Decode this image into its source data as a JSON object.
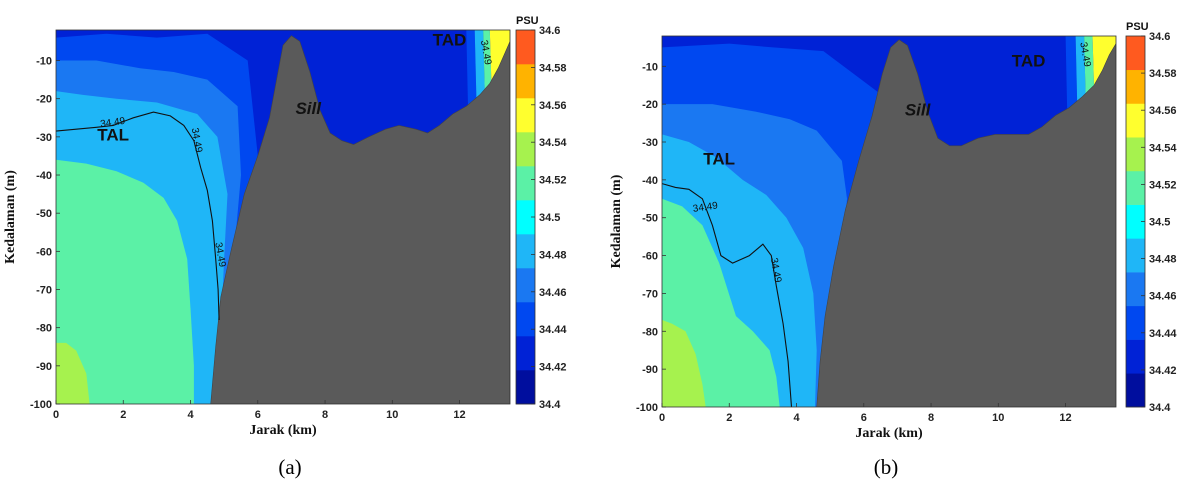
{
  "chart_data": [
    {
      "type": "heatmap",
      "panel_label": "(a)",
      "xlabel": "Jarak (km)",
      "ylabel": "Kedalaman (m)",
      "xlim": [
        0,
        13.5
      ],
      "ylim": [
        -100,
        -2
      ],
      "xticks": [
        0,
        2,
        4,
        6,
        8,
        10,
        12
      ],
      "yticks": [
        -10,
        -20,
        -30,
        -40,
        -50,
        -60,
        -70,
        -80,
        -90,
        -100
      ],
      "colorbar": {
        "unit": "PSU",
        "range": [
          34.4,
          34.6
        ],
        "ticks": [
          "34.6",
          "34.58",
          "34.56",
          "34.54",
          "34.52",
          "34.5",
          "34.48",
          "34.46",
          "34.44",
          "34.42",
          "34.4"
        ],
        "colors": [
          "#000e9e",
          "#0022d6",
          "#0048f0",
          "#1a78f2",
          "#1fb6f7",
          "#00ffff",
          "#5bf1a6",
          "#a6f24e",
          "#ffff2e",
          "#ffb300",
          "#ff5a1f"
        ]
      },
      "annotations": [
        {
          "text": "TAL",
          "x": 1.7,
          "y": -31
        },
        {
          "text": "Sill",
          "x": 7.5,
          "y": -24
        },
        {
          "text": "TAD",
          "x": 11.7,
          "y": -6
        }
      ],
      "contour_label": "34.49",
      "contour_label_positions": [
        {
          "x": 1.7,
          "y": -27
        },
        {
          "x": 4.1,
          "y": -31
        },
        {
          "x": 4.8,
          "y": -61
        },
        {
          "x": 12.7,
          "y": -8
        }
      ],
      "bathymetry": [
        [
          4.6,
          -100
        ],
        [
          4.75,
          -85
        ],
        [
          4.9,
          -72
        ],
        [
          5.2,
          -60
        ],
        [
          5.6,
          -45
        ],
        [
          6.0,
          -35
        ],
        [
          6.35,
          -25
        ],
        [
          6.6,
          -13
        ],
        [
          6.75,
          -6
        ],
        [
          7.0,
          -3.5
        ],
        [
          7.25,
          -5
        ],
        [
          7.55,
          -13
        ],
        [
          7.85,
          -23
        ],
        [
          8.15,
          -29
        ],
        [
          8.5,
          -31
        ],
        [
          8.85,
          -32
        ],
        [
          9.3,
          -30
        ],
        [
          9.8,
          -28
        ],
        [
          10.2,
          -27
        ],
        [
          10.7,
          -28
        ],
        [
          11.05,
          -29
        ],
        [
          11.4,
          -27
        ],
        [
          11.8,
          -24
        ],
        [
          12.2,
          -22
        ],
        [
          12.6,
          -19
        ],
        [
          12.9,
          -16
        ],
        [
          13.15,
          -12
        ],
        [
          13.35,
          -8
        ],
        [
          13.5,
          -5
        ]
      ],
      "field": [
        {
          "level": 34.43,
          "polygon": [
            [
              0,
              -100
            ],
            [
              13.5,
              -100
            ],
            [
              13.5,
              -2
            ],
            [
              0,
              -2
            ]
          ]
        },
        {
          "level": 34.45,
          "polygon": [
            [
              0,
              -100
            ],
            [
              5.1,
              -100
            ],
            [
              5.5,
              -75
            ],
            [
              5.8,
              -55
            ],
            [
              6.0,
              -35
            ],
            [
              5.7,
              -10
            ],
            [
              4.5,
              -3
            ],
            [
              3.0,
              -4
            ],
            [
              1.5,
              -3
            ],
            [
              0,
              -4
            ]
          ]
        },
        {
          "level": 34.47,
          "polygon": [
            [
              0,
              -100
            ],
            [
              4.9,
              -100
            ],
            [
              5.1,
              -80
            ],
            [
              5.3,
              -60
            ],
            [
              5.5,
              -40
            ],
            [
              5.4,
              -22
            ],
            [
              4.5,
              -15
            ],
            [
              3.5,
              -13
            ],
            [
              2.5,
              -12
            ],
            [
              1.2,
              -10
            ],
            [
              0,
              -10
            ]
          ]
        },
        {
          "level": 34.49,
          "polygon": [
            [
              0,
              -100
            ],
            [
              4.75,
              -100
            ],
            [
              4.9,
              -82
            ],
            [
              5.0,
              -62
            ],
            [
              5.1,
              -45
            ],
            [
              4.8,
              -30
            ],
            [
              4.2,
              -24
            ],
            [
              3.0,
              -21
            ],
            [
              1.8,
              -20
            ],
            [
              0.8,
              -19
            ],
            [
              0,
              -18
            ]
          ]
        },
        {
          "level": 34.51,
          "polygon": [
            [
              0,
              -100
            ],
            [
              4.1,
              -100
            ],
            [
              4.1,
              -90
            ],
            [
              4.0,
              -75
            ],
            [
              3.9,
              -62
            ],
            [
              3.6,
              -52
            ],
            [
              3.2,
              -46
            ],
            [
              2.6,
              -42
            ],
            [
              1.8,
              -39
            ],
            [
              0.9,
              -37
            ],
            [
              0,
              -36
            ]
          ]
        },
        {
          "level": 34.53,
          "polygon": [
            [
              0,
              -100
            ],
            [
              1.0,
              -100
            ],
            [
              0.9,
              -92
            ],
            [
              0.6,
              -86
            ],
            [
              0.3,
              -84
            ],
            [
              0,
              -84
            ]
          ]
        },
        {
          "level": 34.43,
          "polygon": [
            [
              11.9,
              -2
            ],
            [
              12.2,
              -2
            ],
            [
              12.25,
              -22
            ],
            [
              11.95,
              -24
            ]
          ]
        },
        {
          "level": 34.45,
          "polygon": [
            [
              12.2,
              -2
            ],
            [
              12.45,
              -2
            ],
            [
              12.5,
              -20
            ],
            [
              12.25,
              -22
            ]
          ]
        },
        {
          "level": 34.49,
          "polygon": [
            [
              12.45,
              -2
            ],
            [
              12.7,
              -2
            ],
            [
              12.75,
              -19
            ],
            [
              12.5,
              -20
            ]
          ]
        },
        {
          "level": 34.51,
          "polygon": [
            [
              12.7,
              -2
            ],
            [
              12.9,
              -2
            ],
            [
              12.95,
              -17
            ],
            [
              12.75,
              -19
            ]
          ]
        },
        {
          "level": 34.55,
          "polygon": [
            [
              12.9,
              -2
            ],
            [
              13.5,
              -2
            ],
            [
              13.5,
              -5
            ],
            [
              13.3,
              -9
            ],
            [
              13.1,
              -14
            ],
            [
              12.95,
              -17
            ]
          ]
        }
      ],
      "contour": [
        [
          0,
          -28.5
        ],
        [
          0.6,
          -28
        ],
        [
          1.2,
          -27.5
        ],
        [
          1.7,
          -27
        ],
        [
          2.3,
          -25
        ],
        [
          2.9,
          -23.5
        ],
        [
          3.4,
          -24.5
        ],
        [
          3.8,
          -27
        ],
        [
          4.1,
          -31
        ],
        [
          4.3,
          -38
        ],
        [
          4.5,
          -44
        ],
        [
          4.65,
          -52
        ],
        [
          4.75,
          -62
        ],
        [
          4.82,
          -70
        ],
        [
          4.85,
          -78
        ]
      ]
    },
    {
      "type": "heatmap",
      "panel_label": "(b)",
      "xlabel": "Jarak (km)",
      "ylabel": "Kedalaman (m)",
      "xlim": [
        0,
        13.5
      ],
      "ylim": [
        -100,
        -2
      ],
      "xticks": [
        0,
        2,
        4,
        6,
        8,
        10,
        12
      ],
      "yticks": [
        -10,
        -20,
        -30,
        -40,
        -50,
        -60,
        -70,
        -80,
        -90,
        -100
      ],
      "colorbar": {
        "unit": "PSU",
        "range": [
          34.4,
          34.6
        ],
        "ticks": [
          "34.6",
          "34.58",
          "34.56",
          "34.54",
          "34.52",
          "34.5",
          "34.48",
          "34.46",
          "34.44",
          "34.42",
          "34.4"
        ],
        "colors": [
          "#000e9e",
          "#0022d6",
          "#0048f0",
          "#1a78f2",
          "#1fb6f7",
          "#00ffff",
          "#5bf1a6",
          "#a6f24e",
          "#ffff2e",
          "#ffb300",
          "#ff5a1f"
        ]
      },
      "annotations": [
        {
          "text": "TAL",
          "x": 1.7,
          "y": -36
        },
        {
          "text": "Sill",
          "x": 7.6,
          "y": -23
        },
        {
          "text": "TAD",
          "x": 10.9,
          "y": -10
        }
      ],
      "contour_label": "34.49",
      "contour_label_positions": [
        {
          "x": 1.3,
          "y": -48
        },
        {
          "x": 3.3,
          "y": -64
        },
        {
          "x": 12.5,
          "y": -7
        }
      ],
      "bathymetry": [
        [
          4.6,
          -100
        ],
        [
          4.7,
          -88
        ],
        [
          4.85,
          -76
        ],
        [
          5.1,
          -63
        ],
        [
          5.45,
          -48
        ],
        [
          5.85,
          -35
        ],
        [
          6.25,
          -23
        ],
        [
          6.55,
          -12
        ],
        [
          6.8,
          -5
        ],
        [
          7.05,
          -3
        ],
        [
          7.3,
          -4.5
        ],
        [
          7.6,
          -12
        ],
        [
          7.9,
          -22
        ],
        [
          8.2,
          -29
        ],
        [
          8.55,
          -31
        ],
        [
          8.9,
          -31
        ],
        [
          9.4,
          -29
        ],
        [
          9.9,
          -28
        ],
        [
          10.4,
          -28
        ],
        [
          10.9,
          -28
        ],
        [
          11.3,
          -26
        ],
        [
          11.7,
          -23
        ],
        [
          12.1,
          -21
        ],
        [
          12.5,
          -18
        ],
        [
          12.85,
          -15
        ],
        [
          13.1,
          -11
        ],
        [
          13.3,
          -7
        ],
        [
          13.5,
          -4
        ]
      ],
      "field": [
        {
          "level": 34.43,
          "polygon": [
            [
              0,
              -100
            ],
            [
              13.5,
              -100
            ],
            [
              13.5,
              -2
            ],
            [
              0,
              -2
            ]
          ]
        },
        {
          "level": 34.45,
          "polygon": [
            [
              0,
              -100
            ],
            [
              5.3,
              -100
            ],
            [
              5.8,
              -70
            ],
            [
              6.3,
              -40
            ],
            [
              6.6,
              -18
            ],
            [
              4.8,
              -6
            ],
            [
              3.3,
              -5
            ],
            [
              2.0,
              -4
            ],
            [
              0,
              -5
            ]
          ]
        },
        {
          "level": 34.47,
          "polygon": [
            [
              0,
              -100
            ],
            [
              4.75,
              -100
            ],
            [
              5.1,
              -82
            ],
            [
              5.35,
              -62
            ],
            [
              5.5,
              -45
            ],
            [
              5.35,
              -35
            ],
            [
              4.6,
              -27
            ],
            [
              3.8,
              -24
            ],
            [
              2.8,
              -22
            ],
            [
              1.5,
              -20
            ],
            [
              0,
              -20
            ]
          ]
        },
        {
          "level": 34.49,
          "polygon": [
            [
              0,
              -100
            ],
            [
              4.55,
              -100
            ],
            [
              4.6,
              -85
            ],
            [
              4.5,
              -70
            ],
            [
              4.2,
              -58
            ],
            [
              3.7,
              -50
            ],
            [
              3.1,
              -44
            ],
            [
              2.4,
              -40
            ],
            [
              1.6,
              -34
            ],
            [
              0.8,
              -30
            ],
            [
              0,
              -28
            ]
          ]
        },
        {
          "level": 34.51,
          "polygon": [
            [
              0,
              -100
            ],
            [
              3.5,
              -100
            ],
            [
              3.4,
              -92
            ],
            [
              3.2,
              -85
            ],
            [
              2.7,
              -80
            ],
            [
              2.2,
              -76
            ],
            [
              1.7,
              -62
            ],
            [
              1.2,
              -52
            ],
            [
              0.6,
              -47
            ],
            [
              0,
              -45
            ]
          ]
        },
        {
          "level": 34.53,
          "polygon": [
            [
              0,
              -100
            ],
            [
              1.3,
              -100
            ],
            [
              1.2,
              -94
            ],
            [
              1.0,
              -86
            ],
            [
              0.7,
              -80
            ],
            [
              0.3,
              -78
            ],
            [
              0,
              -77
            ]
          ]
        },
        {
          "level": 34.45,
          "polygon": [
            [
              12.0,
              -2
            ],
            [
              12.3,
              -2
            ],
            [
              12.35,
              -21
            ],
            [
              12.05,
              -22
            ]
          ]
        },
        {
          "level": 34.49,
          "polygon": [
            [
              12.3,
              -2
            ],
            [
              12.55,
              -2
            ],
            [
              12.6,
              -19
            ],
            [
              12.35,
              -21
            ]
          ]
        },
        {
          "level": 34.51,
          "polygon": [
            [
              12.55,
              -2
            ],
            [
              12.8,
              -2
            ],
            [
              12.85,
              -16
            ],
            [
              12.6,
              -19
            ]
          ]
        },
        {
          "level": 34.55,
          "polygon": [
            [
              12.8,
              -2
            ],
            [
              13.5,
              -2
            ],
            [
              13.5,
              -4
            ],
            [
              13.3,
              -7
            ],
            [
              13.1,
              -11
            ],
            [
              12.85,
              -16
            ]
          ]
        }
      ],
      "contour": [
        [
          0,
          -41
        ],
        [
          0.4,
          -42
        ],
        [
          0.8,
          -42.5
        ],
        [
          1.2,
          -45
        ],
        [
          1.5,
          -52
        ],
        [
          1.75,
          -60
        ],
        [
          2.1,
          -62
        ],
        [
          2.6,
          -60
        ],
        [
          3.0,
          -57
        ],
        [
          3.25,
          -60
        ],
        [
          3.4,
          -68
        ],
        [
          3.6,
          -78
        ],
        [
          3.75,
          -88
        ],
        [
          3.85,
          -100
        ]
      ]
    }
  ]
}
